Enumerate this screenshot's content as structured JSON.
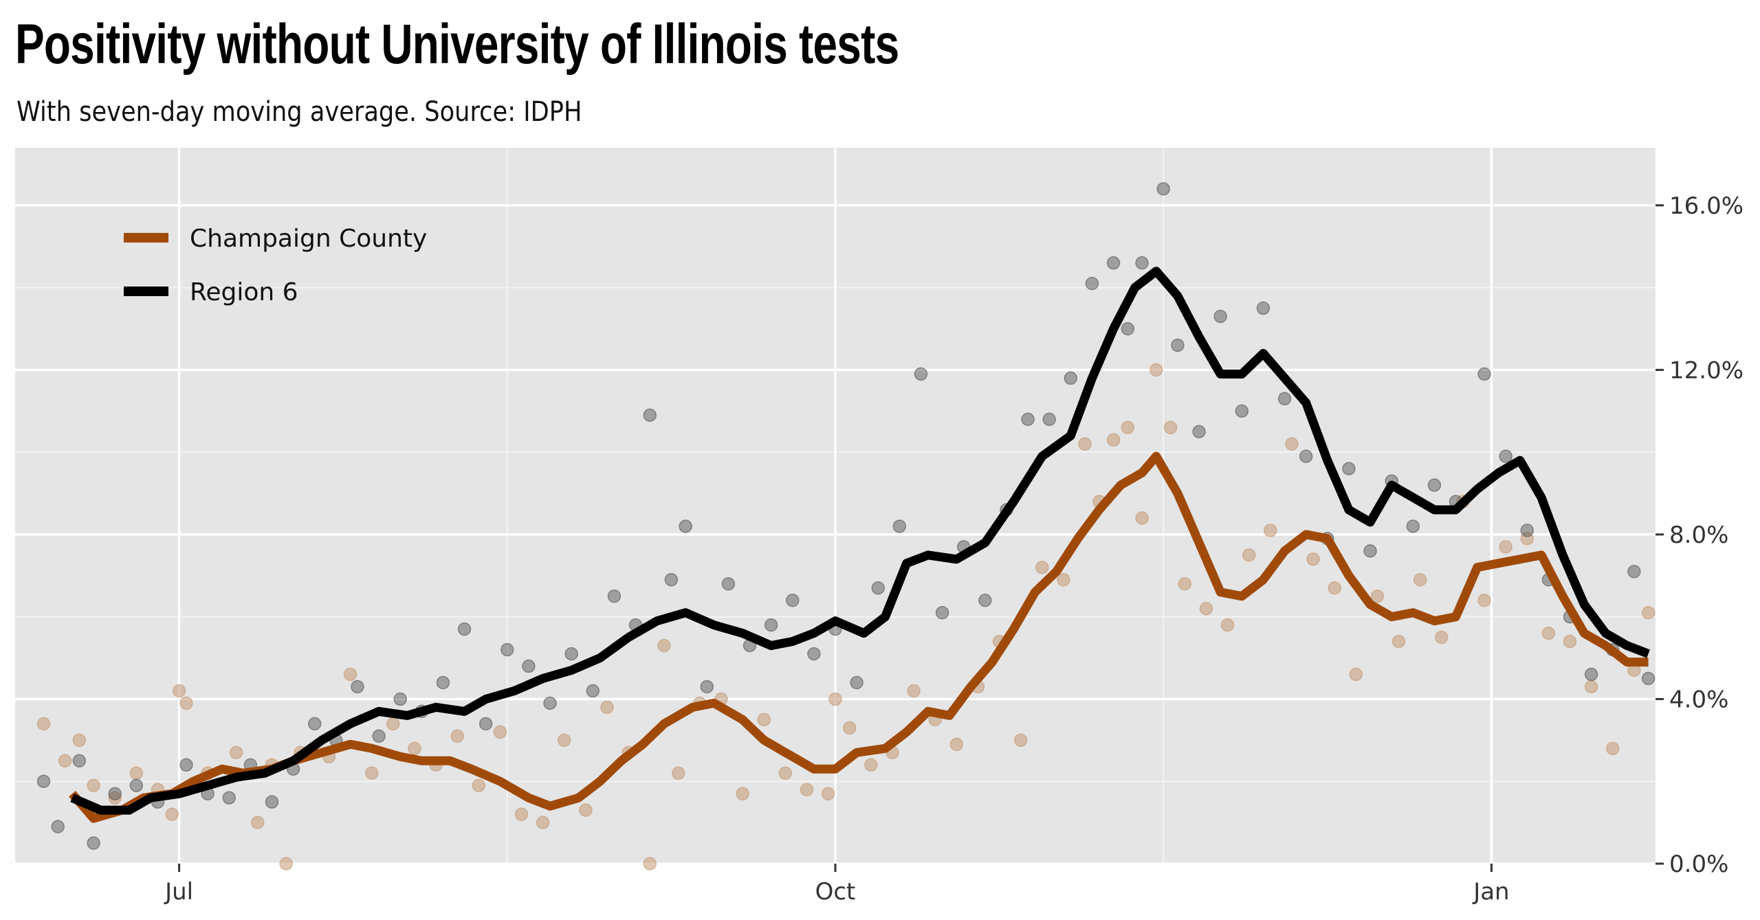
{
  "chart_data": {
    "type": "line",
    "title": "Positivity without University of Illinois tests",
    "subtitle": "With seven-day moving average. Source: IDPH",
    "x_ticks": [
      {
        "date": "2020-07-01",
        "label": "Jul"
      },
      {
        "date": "2020-10-01",
        "label": "Oct"
      },
      {
        "date": "2021-01-01",
        "label": "Jan"
      }
    ],
    "xlim": [
      "2020-06-08",
      "2021-01-24"
    ],
    "ylim": [
      0,
      17.4
    ],
    "y_ticks": [
      0,
      4,
      8,
      12,
      16
    ],
    "y_tick_labels": [
      "0.0%",
      "4.0%",
      "8.0%",
      "12.0%",
      "16.0%"
    ],
    "y_axis_position": "right",
    "grid": true,
    "legend_position": "top-left",
    "series": [
      {
        "name": "Champaign County",
        "color": "#a04a0a",
        "moving_average": [
          [
            "2020-06-16",
            1.7
          ],
          [
            "2020-06-19",
            1.1
          ],
          [
            "2020-06-23",
            1.3
          ],
          [
            "2020-06-26",
            1.6
          ],
          [
            "2020-06-30",
            1.7
          ],
          [
            "2020-07-03",
            2.0
          ],
          [
            "2020-07-07",
            2.3
          ],
          [
            "2020-07-10",
            2.2
          ],
          [
            "2020-07-14",
            2.3
          ],
          [
            "2020-07-17",
            2.5
          ],
          [
            "2020-07-21",
            2.7
          ],
          [
            "2020-07-25",
            2.9
          ],
          [
            "2020-07-28",
            2.8
          ],
          [
            "2020-08-01",
            2.6
          ],
          [
            "2020-08-04",
            2.5
          ],
          [
            "2020-08-08",
            2.5
          ],
          [
            "2020-08-11",
            2.3
          ],
          [
            "2020-08-15",
            2.0
          ],
          [
            "2020-08-19",
            1.6
          ],
          [
            "2020-08-22",
            1.4
          ],
          [
            "2020-08-26",
            1.6
          ],
          [
            "2020-08-29",
            2.0
          ],
          [
            "2020-09-01",
            2.5
          ],
          [
            "2020-09-04",
            2.9
          ],
          [
            "2020-09-07",
            3.4
          ],
          [
            "2020-09-11",
            3.8
          ],
          [
            "2020-09-14",
            3.9
          ],
          [
            "2020-09-18",
            3.5
          ],
          [
            "2020-09-21",
            3.0
          ],
          [
            "2020-09-25",
            2.6
          ],
          [
            "2020-09-28",
            2.3
          ],
          [
            "2020-10-01",
            2.3
          ],
          [
            "2020-10-04",
            2.7
          ],
          [
            "2020-10-08",
            2.8
          ],
          [
            "2020-10-11",
            3.2
          ],
          [
            "2020-10-14",
            3.7
          ],
          [
            "2020-10-17",
            3.6
          ],
          [
            "2020-10-20",
            4.3
          ],
          [
            "2020-10-23",
            4.9
          ],
          [
            "2020-10-26",
            5.7
          ],
          [
            "2020-10-29",
            6.6
          ],
          [
            "2020-11-01",
            7.1
          ],
          [
            "2020-11-04",
            7.9
          ],
          [
            "2020-11-07",
            8.6
          ],
          [
            "2020-11-10",
            9.2
          ],
          [
            "2020-11-13",
            9.5
          ],
          [
            "2020-11-15",
            9.9
          ],
          [
            "2020-11-18",
            9.0
          ],
          [
            "2020-11-21",
            7.8
          ],
          [
            "2020-11-24",
            6.6
          ],
          [
            "2020-11-27",
            6.5
          ],
          [
            "2020-11-30",
            6.9
          ],
          [
            "2020-12-03",
            7.6
          ],
          [
            "2020-12-06",
            8.0
          ],
          [
            "2020-12-09",
            7.9
          ],
          [
            "2020-12-12",
            7.0
          ],
          [
            "2020-12-15",
            6.3
          ],
          [
            "2020-12-18",
            6.0
          ],
          [
            "2020-12-21",
            6.1
          ],
          [
            "2020-12-24",
            5.9
          ],
          [
            "2020-12-27",
            6.0
          ],
          [
            "2020-12-30",
            7.2
          ],
          [
            "2021-01-02",
            7.3
          ],
          [
            "2021-01-05",
            7.4
          ],
          [
            "2021-01-08",
            7.5
          ],
          [
            "2021-01-11",
            6.5
          ],
          [
            "2021-01-14",
            5.6
          ],
          [
            "2021-01-17",
            5.3
          ],
          [
            "2021-01-20",
            4.9
          ],
          [
            "2021-01-23",
            4.9
          ]
        ]
      },
      {
        "name": "Region 6",
        "color": "#000000",
        "moving_average": [
          [
            "2020-06-16",
            1.6
          ],
          [
            "2020-06-20",
            1.3
          ],
          [
            "2020-06-24",
            1.3
          ],
          [
            "2020-06-27",
            1.6
          ],
          [
            "2020-07-01",
            1.7
          ],
          [
            "2020-07-05",
            1.9
          ],
          [
            "2020-07-09",
            2.1
          ],
          [
            "2020-07-13",
            2.2
          ],
          [
            "2020-07-17",
            2.5
          ],
          [
            "2020-07-21",
            3.0
          ],
          [
            "2020-07-25",
            3.4
          ],
          [
            "2020-07-29",
            3.7
          ],
          [
            "2020-08-02",
            3.6
          ],
          [
            "2020-08-06",
            3.8
          ],
          [
            "2020-08-10",
            3.7
          ],
          [
            "2020-08-13",
            4.0
          ],
          [
            "2020-08-17",
            4.2
          ],
          [
            "2020-08-21",
            4.5
          ],
          [
            "2020-08-25",
            4.7
          ],
          [
            "2020-08-29",
            5.0
          ],
          [
            "2020-09-02",
            5.5
          ],
          [
            "2020-09-06",
            5.9
          ],
          [
            "2020-09-10",
            6.1
          ],
          [
            "2020-09-14",
            5.8
          ],
          [
            "2020-09-18",
            5.6
          ],
          [
            "2020-09-22",
            5.3
          ],
          [
            "2020-09-25",
            5.4
          ],
          [
            "2020-09-28",
            5.6
          ],
          [
            "2020-10-01",
            5.9
          ],
          [
            "2020-10-05",
            5.6
          ],
          [
            "2020-10-08",
            6.0
          ],
          [
            "2020-10-11",
            7.3
          ],
          [
            "2020-10-14",
            7.5
          ],
          [
            "2020-10-18",
            7.4
          ],
          [
            "2020-10-22",
            7.8
          ],
          [
            "2020-10-26",
            8.8
          ],
          [
            "2020-10-30",
            9.9
          ],
          [
            "2020-11-03",
            10.4
          ],
          [
            "2020-11-06",
            11.8
          ],
          [
            "2020-11-09",
            13.0
          ],
          [
            "2020-11-12",
            14.0
          ],
          [
            "2020-11-15",
            14.4
          ],
          [
            "2020-11-18",
            13.8
          ],
          [
            "2020-11-21",
            12.8
          ],
          [
            "2020-11-24",
            11.9
          ],
          [
            "2020-11-27",
            11.9
          ],
          [
            "2020-11-30",
            12.4
          ],
          [
            "2020-12-03",
            11.8
          ],
          [
            "2020-12-06",
            11.2
          ],
          [
            "2020-12-09",
            9.8
          ],
          [
            "2020-12-12",
            8.6
          ],
          [
            "2020-12-15",
            8.3
          ],
          [
            "2020-12-18",
            9.2
          ],
          [
            "2020-12-21",
            8.9
          ],
          [
            "2020-12-24",
            8.6
          ],
          [
            "2020-12-27",
            8.6
          ],
          [
            "2020-12-30",
            9.1
          ],
          [
            "2021-01-02",
            9.5
          ],
          [
            "2021-01-05",
            9.8
          ],
          [
            "2021-01-08",
            8.9
          ],
          [
            "2021-01-11",
            7.5
          ],
          [
            "2021-01-14",
            6.3
          ],
          [
            "2021-01-17",
            5.6
          ],
          [
            "2021-01-20",
            5.3
          ],
          [
            "2021-01-23",
            5.1
          ]
        ]
      }
    ],
    "daily_points": {
      "Champaign County": [
        [
          "2020-06-12",
          3.4
        ],
        [
          "2020-06-15",
          2.5
        ],
        [
          "2020-06-17",
          3.0
        ],
        [
          "2020-06-19",
          1.9
        ],
        [
          "2020-06-22",
          1.6
        ],
        [
          "2020-06-25",
          2.2
        ],
        [
          "2020-06-28",
          1.8
        ],
        [
          "2020-06-30",
          1.2
        ],
        [
          "2020-07-01",
          4.2
        ],
        [
          "2020-07-02",
          3.9
        ],
        [
          "2020-07-05",
          2.2
        ],
        [
          "2020-07-09",
          2.7
        ],
        [
          "2020-07-12",
          1.0
        ],
        [
          "2020-07-14",
          2.4
        ],
        [
          "2020-07-16",
          0.0
        ],
        [
          "2020-07-18",
          2.7
        ],
        [
          "2020-07-22",
          2.6
        ],
        [
          "2020-07-25",
          4.6
        ],
        [
          "2020-07-28",
          2.2
        ],
        [
          "2020-07-31",
          3.4
        ],
        [
          "2020-08-03",
          2.8
        ],
        [
          "2020-08-06",
          2.4
        ],
        [
          "2020-08-09",
          3.1
        ],
        [
          "2020-08-12",
          1.9
        ],
        [
          "2020-08-15",
          3.2
        ],
        [
          "2020-08-18",
          1.2
        ],
        [
          "2020-08-21",
          1.0
        ],
        [
          "2020-08-24",
          3.0
        ],
        [
          "2020-08-27",
          1.3
        ],
        [
          "2020-08-30",
          3.8
        ],
        [
          "2020-09-02",
          2.7
        ],
        [
          "2020-09-05",
          0.0
        ],
        [
          "2020-09-07",
          5.3
        ],
        [
          "2020-09-09",
          2.2
        ],
        [
          "2020-09-12",
          3.9
        ],
        [
          "2020-09-15",
          4.0
        ],
        [
          "2020-09-18",
          1.7
        ],
        [
          "2020-09-21",
          3.5
        ],
        [
          "2020-09-24",
          2.2
        ],
        [
          "2020-09-27",
          1.8
        ],
        [
          "2020-09-30",
          1.7
        ],
        [
          "2020-10-01",
          4.0
        ],
        [
          "2020-10-03",
          3.3
        ],
        [
          "2020-10-06",
          2.4
        ],
        [
          "2020-10-09",
          2.7
        ],
        [
          "2020-10-12",
          4.2
        ],
        [
          "2020-10-15",
          3.5
        ],
        [
          "2020-10-18",
          2.9
        ],
        [
          "2020-10-21",
          4.3
        ],
        [
          "2020-10-24",
          5.4
        ],
        [
          "2020-10-27",
          3.0
        ],
        [
          "2020-10-30",
          7.2
        ],
        [
          "2020-11-02",
          6.9
        ],
        [
          "2020-11-05",
          10.2
        ],
        [
          "2020-11-07",
          8.8
        ],
        [
          "2020-11-09",
          10.3
        ],
        [
          "2020-11-11",
          10.6
        ],
        [
          "2020-11-13",
          8.4
        ],
        [
          "2020-11-15",
          12.0
        ],
        [
          "2020-11-17",
          10.6
        ],
        [
          "2020-11-19",
          6.8
        ],
        [
          "2020-11-22",
          6.2
        ],
        [
          "2020-11-25",
          5.8
        ],
        [
          "2020-11-28",
          7.5
        ],
        [
          "2020-12-01",
          8.1
        ],
        [
          "2020-12-04",
          10.2
        ],
        [
          "2020-12-07",
          7.4
        ],
        [
          "2020-12-10",
          6.7
        ],
        [
          "2020-12-13",
          4.6
        ],
        [
          "2020-12-16",
          6.5
        ],
        [
          "2020-12-19",
          5.4
        ],
        [
          "2020-12-22",
          6.9
        ],
        [
          "2020-12-25",
          5.5
        ],
        [
          "2020-12-28",
          8.8
        ],
        [
          "2020-12-31",
          6.4
        ],
        [
          "2021-01-03",
          7.7
        ],
        [
          "2021-01-06",
          7.9
        ],
        [
          "2021-01-09",
          5.6
        ],
        [
          "2021-01-12",
          5.4
        ],
        [
          "2021-01-15",
          4.3
        ],
        [
          "2021-01-18",
          2.8
        ],
        [
          "2021-01-21",
          4.7
        ],
        [
          "2021-01-23",
          6.1
        ]
      ],
      "Region 6": [
        [
          "2020-06-12",
          2.0
        ],
        [
          "2020-06-14",
          0.9
        ],
        [
          "2020-06-17",
          2.5
        ],
        [
          "2020-06-19",
          0.5
        ],
        [
          "2020-06-22",
          1.7
        ],
        [
          "2020-06-25",
          1.9
        ],
        [
          "2020-06-28",
          1.5
        ],
        [
          "2020-07-02",
          2.4
        ],
        [
          "2020-07-05",
          1.7
        ],
        [
          "2020-07-08",
          1.6
        ],
        [
          "2020-07-11",
          2.4
        ],
        [
          "2020-07-14",
          1.5
        ],
        [
          "2020-07-17",
          2.3
        ],
        [
          "2020-07-20",
          3.4
        ],
        [
          "2020-07-23",
          3.0
        ],
        [
          "2020-07-26",
          4.3
        ],
        [
          "2020-07-29",
          3.1
        ],
        [
          "2020-08-01",
          4.0
        ],
        [
          "2020-08-04",
          3.7
        ],
        [
          "2020-08-07",
          4.4
        ],
        [
          "2020-08-10",
          5.7
        ],
        [
          "2020-08-13",
          3.4
        ],
        [
          "2020-08-16",
          5.2
        ],
        [
          "2020-08-19",
          4.8
        ],
        [
          "2020-08-22",
          3.9
        ],
        [
          "2020-08-25",
          5.1
        ],
        [
          "2020-08-28",
          4.2
        ],
        [
          "2020-08-31",
          6.5
        ],
        [
          "2020-09-03",
          5.8
        ],
        [
          "2020-09-05",
          10.9
        ],
        [
          "2020-09-08",
          6.9
        ],
        [
          "2020-09-10",
          8.2
        ],
        [
          "2020-09-13",
          4.3
        ],
        [
          "2020-09-16",
          6.8
        ],
        [
          "2020-09-19",
          5.3
        ],
        [
          "2020-09-22",
          5.8
        ],
        [
          "2020-09-25",
          6.4
        ],
        [
          "2020-09-28",
          5.1
        ],
        [
          "2020-10-01",
          5.7
        ],
        [
          "2020-10-04",
          4.4
        ],
        [
          "2020-10-07",
          6.7
        ],
        [
          "2020-10-10",
          8.2
        ],
        [
          "2020-10-13",
          11.9
        ],
        [
          "2020-10-16",
          6.1
        ],
        [
          "2020-10-19",
          7.7
        ],
        [
          "2020-10-22",
          6.4
        ],
        [
          "2020-10-25",
          8.6
        ],
        [
          "2020-10-28",
          10.8
        ],
        [
          "2020-10-31",
          10.8
        ],
        [
          "2020-11-03",
          11.8
        ],
        [
          "2020-11-06",
          14.1
        ],
        [
          "2020-11-09",
          14.6
        ],
        [
          "2020-11-11",
          13.0
        ],
        [
          "2020-11-13",
          14.6
        ],
        [
          "2020-11-16",
          16.4
        ],
        [
          "2020-11-18",
          12.6
        ],
        [
          "2020-11-21",
          10.5
        ],
        [
          "2020-11-24",
          13.3
        ],
        [
          "2020-11-27",
          11.0
        ],
        [
          "2020-11-30",
          13.5
        ],
        [
          "2020-12-03",
          11.3
        ],
        [
          "2020-12-06",
          9.9
        ],
        [
          "2020-12-09",
          7.9
        ],
        [
          "2020-12-12",
          9.6
        ],
        [
          "2020-12-15",
          7.6
        ],
        [
          "2020-12-18",
          9.3
        ],
        [
          "2020-12-21",
          8.2
        ],
        [
          "2020-12-24",
          9.2
        ],
        [
          "2020-12-27",
          8.8
        ],
        [
          "2020-12-31",
          11.9
        ],
        [
          "2021-01-03",
          9.9
        ],
        [
          "2021-01-06",
          8.1
        ],
        [
          "2021-01-09",
          6.9
        ],
        [
          "2021-01-12",
          6.0
        ],
        [
          "2021-01-15",
          4.6
        ],
        [
          "2021-01-18",
          5.2
        ],
        [
          "2021-01-21",
          7.1
        ],
        [
          "2021-01-23",
          4.5
        ]
      ]
    }
  }
}
